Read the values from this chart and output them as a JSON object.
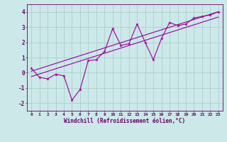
{
  "x": [
    0,
    1,
    2,
    3,
    4,
    5,
    6,
    7,
    8,
    9,
    10,
    11,
    12,
    13,
    14,
    15,
    16,
    17,
    18,
    19,
    20,
    21,
    22,
    23
  ],
  "y_data": [
    0.3,
    -0.3,
    -0.4,
    -0.1,
    -0.2,
    -1.8,
    -1.1,
    0.8,
    0.85,
    1.4,
    2.9,
    1.8,
    1.9,
    3.2,
    2.0,
    0.85,
    2.25,
    3.3,
    3.1,
    3.2,
    3.6,
    3.7,
    3.8,
    4.0
  ],
  "y_trend1": [
    0.1,
    0.27,
    0.44,
    0.61,
    0.78,
    0.95,
    1.12,
    1.29,
    1.46,
    1.63,
    1.8,
    1.97,
    2.14,
    2.31,
    2.48,
    2.65,
    2.82,
    2.99,
    3.16,
    3.33,
    3.5,
    3.67,
    3.84,
    4.01
  ],
  "y_trend2": [
    -0.25,
    -0.08,
    0.09,
    0.26,
    0.43,
    0.6,
    0.77,
    0.94,
    1.11,
    1.28,
    1.45,
    1.62,
    1.79,
    1.96,
    2.13,
    2.3,
    2.47,
    2.64,
    2.81,
    2.98,
    3.15,
    3.32,
    3.49,
    3.66
  ],
  "line_color": "#990099",
  "bg_color": "#cce8e8",
  "grid_color": "#aad0d0",
  "tick_color": "#660066",
  "xlabel": "Windchill (Refroidissement éolien,°C)",
  "ylim": [
    -2.5,
    4.5
  ],
  "xlim": [
    -0.5,
    23.5
  ],
  "xtick_labels": [
    "0",
    "1",
    "2",
    "3",
    "4",
    "5",
    "6",
    "7",
    "8",
    "9",
    "10",
    "11",
    "12",
    "13",
    "14",
    "15",
    "16",
    "17",
    "18",
    "19",
    "20",
    "21",
    "22",
    "23"
  ],
  "ytick_labels": [
    "-2",
    "-1",
    "0",
    "1",
    "2",
    "3",
    "4"
  ],
  "ytick_vals": [
    -2,
    -1,
    0,
    1,
    2,
    3,
    4
  ]
}
